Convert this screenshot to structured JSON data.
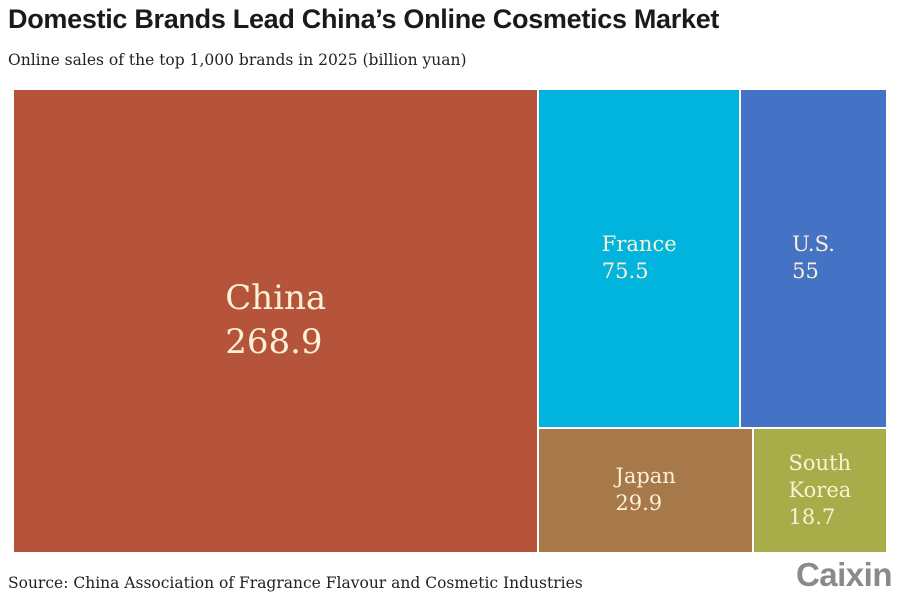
{
  "title": "Domestic Brands Lead China’s Online Cosmetics Market",
  "subtitle": "Online sales of the top 1,000 brands in 2025 (billion yuan)",
  "source": "Source: China Association of Fragrance Flavour and Cosmetic Industries",
  "logo": "Caixin",
  "chart_data": {
    "type": "treemap",
    "unit": "billion yuan",
    "items": [
      {
        "name": "China",
        "value": 268.9,
        "value_label": "268.9",
        "color": "#b5533b"
      },
      {
        "name": "France",
        "value": 75.5,
        "value_label": "75.5",
        "color": "#00b4dd"
      },
      {
        "name": "U.S.",
        "value": 55,
        "value_label": "55",
        "color": "#4472c4"
      },
      {
        "name": "Japan",
        "value": 29.9,
        "value_label": "29.9",
        "color": "#a6784a"
      },
      {
        "name": "South Korea",
        "value": 18.7,
        "value_label": "18.7",
        "color": "#a8ad4a"
      }
    ]
  }
}
